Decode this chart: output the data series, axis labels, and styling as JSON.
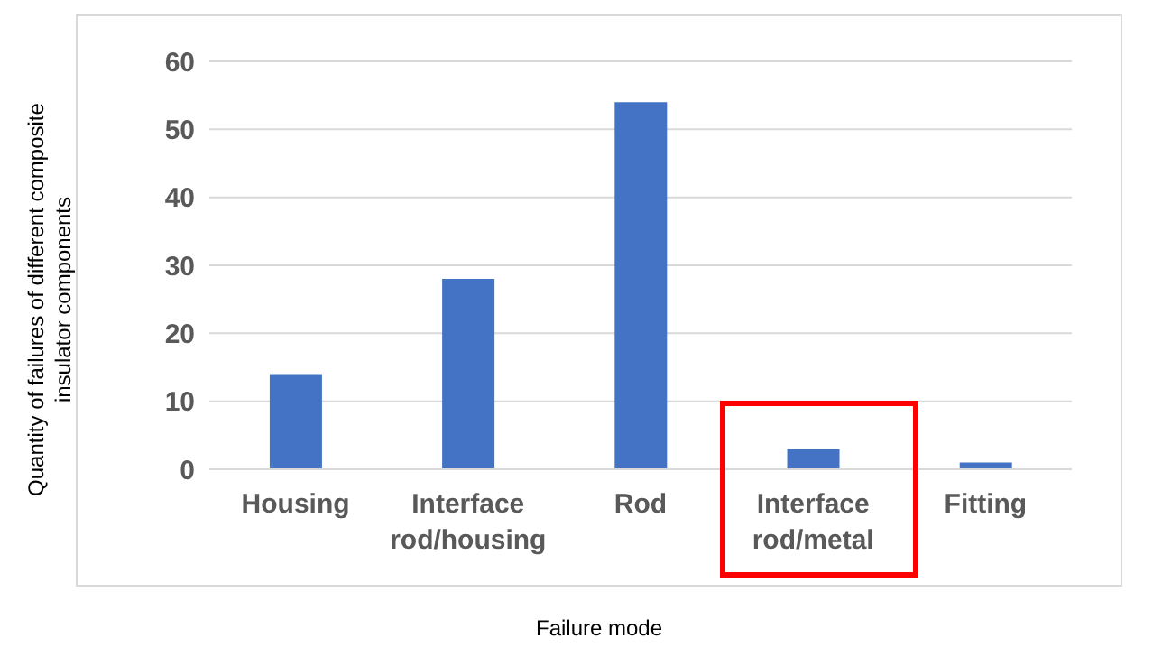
{
  "chart_data": {
    "type": "bar",
    "xlabel": "Failure mode",
    "ylabel": "Quantity of failures of different composite insulator components",
    "categories": [
      "Housing",
      "Interface rod/housing",
      "Rod",
      "Interface rod/metal",
      "Fitting"
    ],
    "values": [
      14,
      28,
      54,
      3,
      1
    ],
    "color": "#4472c4",
    "ylim": [
      0,
      60
    ],
    "yticks": [
      0,
      10,
      20,
      30,
      40,
      50,
      60
    ],
    "grid": "y"
  }
}
